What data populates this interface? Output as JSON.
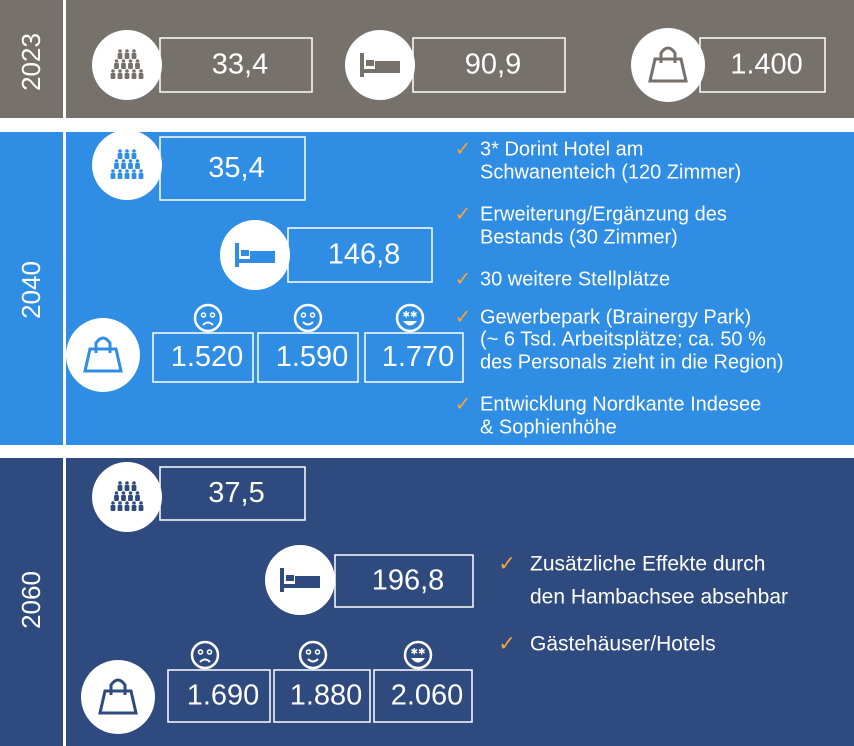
{
  "sections": [
    {
      "year": "2023",
      "population": "33,4",
      "beds": "90,9",
      "purchasing": [
        "1.400"
      ],
      "bullets": []
    },
    {
      "year": "2040",
      "population": "35,4",
      "beds": "146,8",
      "purchasing": [
        "1.520",
        "1.590",
        "1.770"
      ],
      "bullets": [
        [
          "3* Dorint Hotel am",
          "Schwanenteich (120 Zimmer)"
        ],
        [
          "Erweiterung/Ergänzung des",
          "Bestands (30 Zimmer)"
        ],
        [
          "30 weitere Stellplätze"
        ],
        [
          "Gewerbepark (Brainergy Park)",
          "(~ 6 Tsd. Arbeitsplätze; ca. 50 %",
          "des Personals zieht in die Region)"
        ],
        [
          "Entwicklung Nordkante Indesee",
          "& Sophienhöhe"
        ]
      ]
    },
    {
      "year": "2060",
      "population": "37,5",
      "beds": "196,8",
      "purchasing": [
        "1.690",
        "1.880",
        "2.060"
      ],
      "bullets": [
        [
          "Zusätzliche Effekte durch",
          "den Hambachsee absehbar"
        ],
        [
          "Gästehäuser/Hotels"
        ]
      ]
    }
  ]
}
